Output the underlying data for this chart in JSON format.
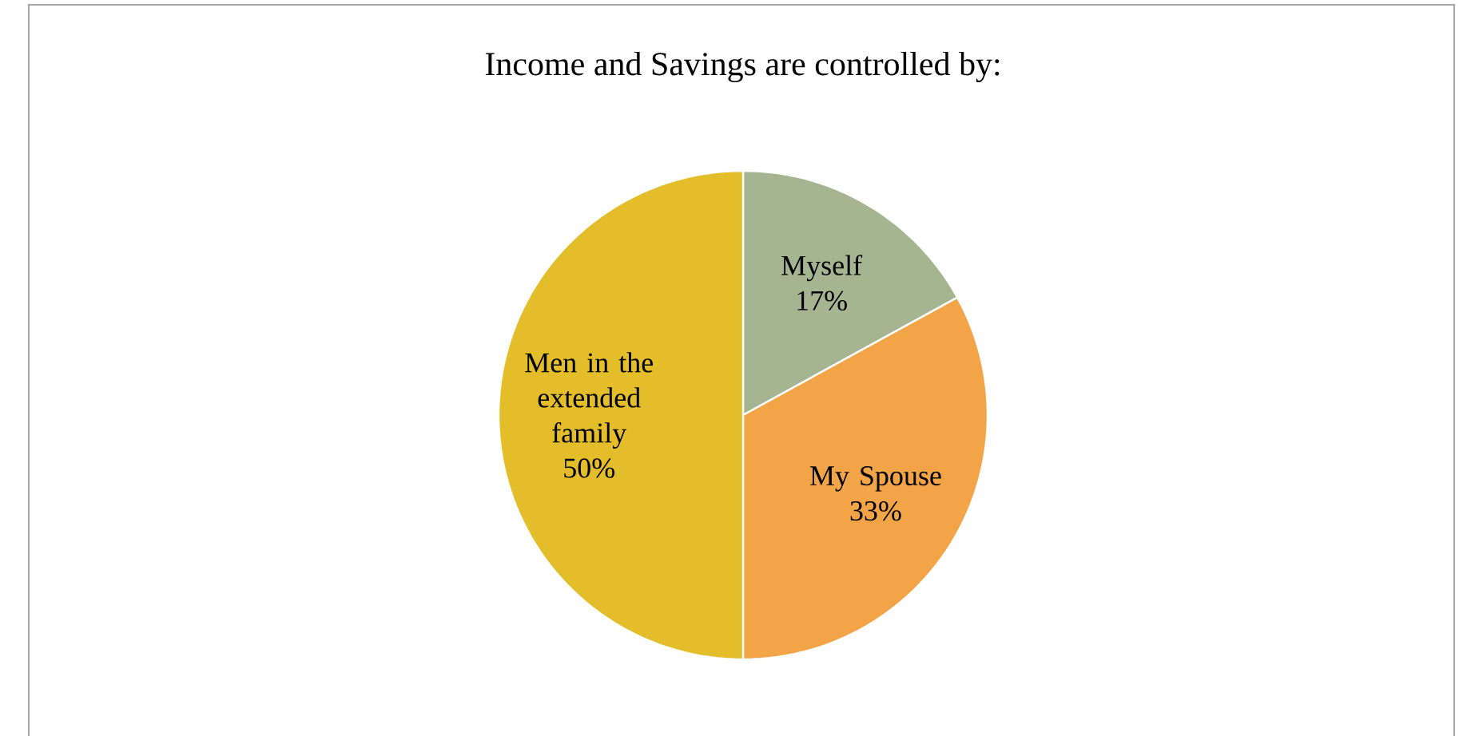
{
  "chart_data": {
    "type": "pie",
    "title": "Income and Savings are controlled by:",
    "categories": [
      "Myself",
      "My Spouse",
      "Men in the extended family"
    ],
    "values": [
      17,
      33,
      50
    ],
    "colors": [
      "#a5b592",
      "#f3a447",
      "#e4bd2a"
    ],
    "value_labels": [
      "17%",
      "33%",
      "50%"
    ]
  }
}
